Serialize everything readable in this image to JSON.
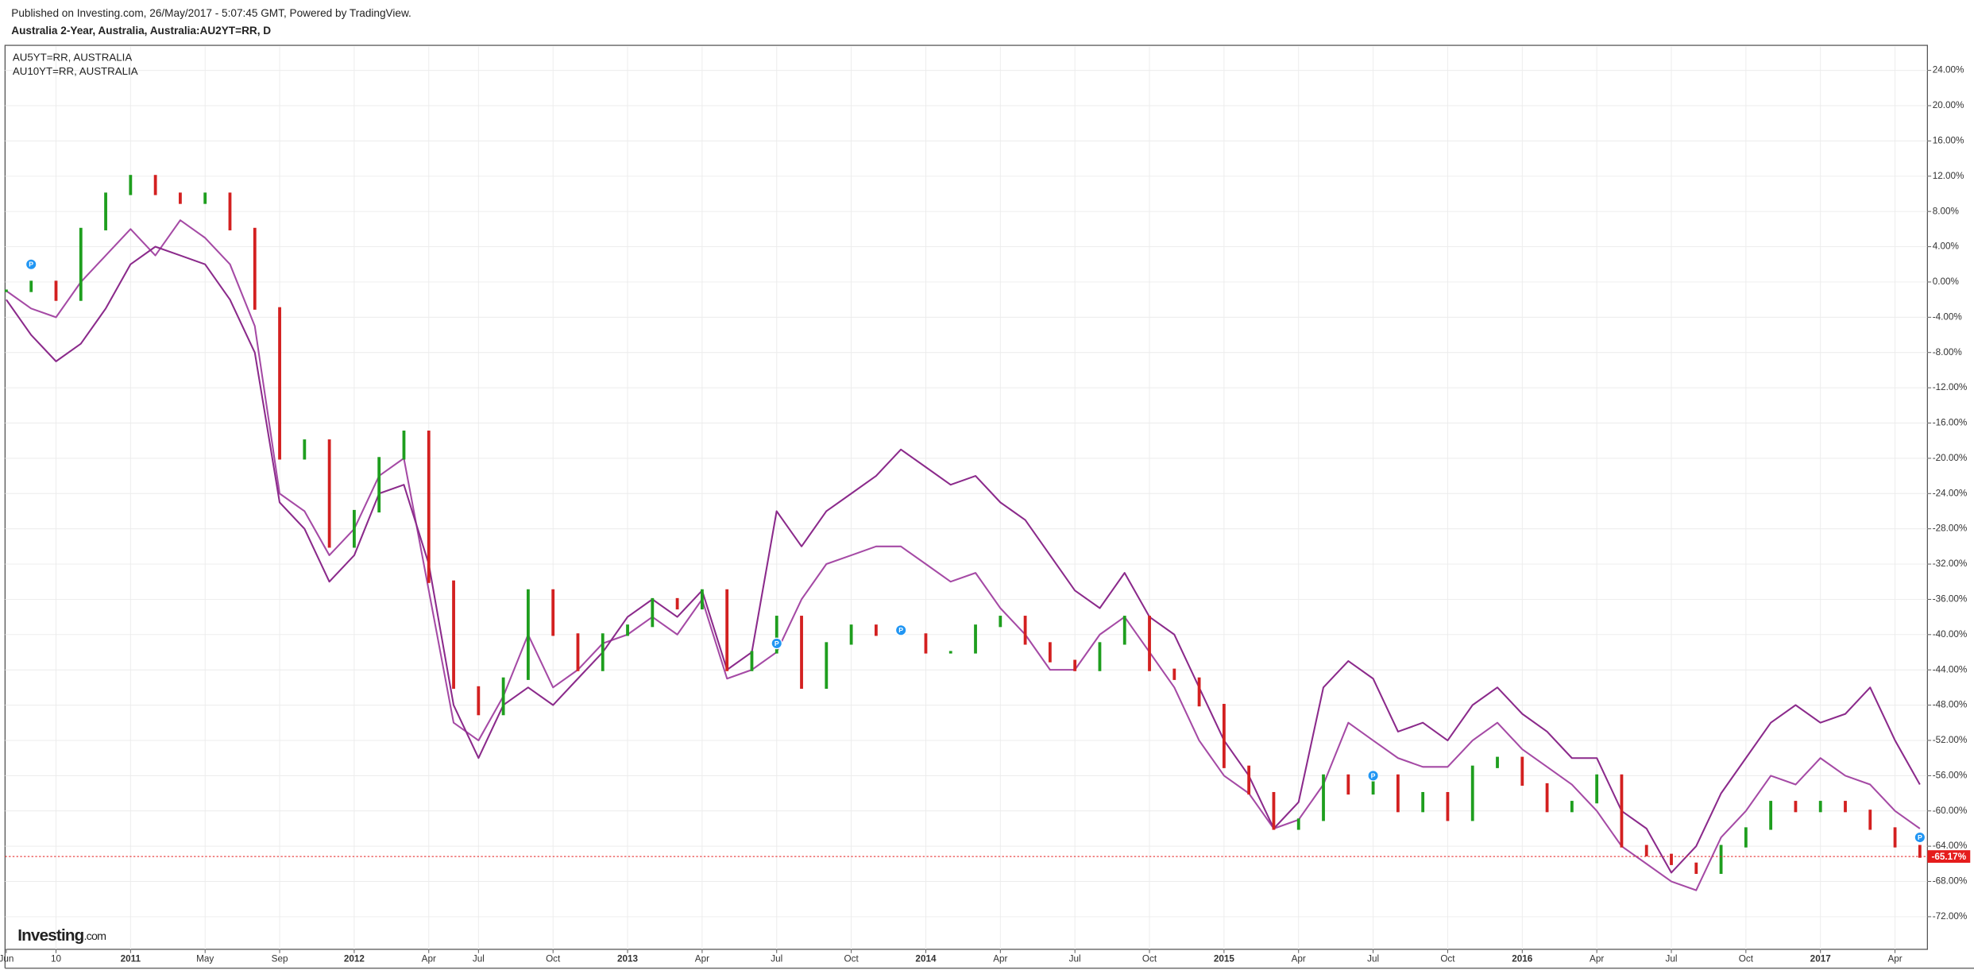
{
  "chart_data": {
    "type": "candle-line",
    "source_note": "Published on Investing.com, 26/May/2017 - 5:07:45 GMT, Powered by TradingView.",
    "title": "Australia 2-Year, Australia, Australia:AU2YT=RR, D",
    "logo": [
      "Investing",
      ".com"
    ],
    "categories": [
      "Jun",
      null,
      "10",
      null,
      null,
      "2011",
      null,
      null,
      "May",
      null,
      null,
      "Sep",
      null,
      null,
      "2012",
      null,
      null,
      "Apr",
      null,
      "Jul",
      null,
      null,
      "Oct",
      null,
      null,
      "2013",
      null,
      null,
      "Apr",
      null,
      null,
      "Jul",
      null,
      null,
      "Oct",
      null,
      null,
      "2014",
      null,
      null,
      "Apr",
      null,
      null,
      "Jul",
      null,
      null,
      "Oct",
      null,
      null,
      "2015",
      null,
      null,
      "Apr",
      null,
      null,
      "Jul",
      null,
      null,
      "Oct",
      null,
      null,
      "2016",
      null,
      null,
      "Apr",
      null,
      null,
      "Jul",
      null,
      null,
      "Oct",
      null,
      null,
      "2017",
      null,
      null,
      "Apr",
      null
    ],
    "series": [
      {
        "style": "candles",
        "color_up": "#1e9e1e",
        "color_down": "#d32020",
        "values": [
          -1,
          0,
          -2,
          6,
          10,
          12,
          10,
          9,
          10,
          6,
          -3,
          -20,
          -18,
          -30,
          -26,
          -20,
          -17,
          -34,
          -46,
          -49,
          -45,
          -35,
          -40,
          -44,
          -40,
          -39,
          -36,
          -37,
          -35,
          -44,
          -42,
          -38,
          -46,
          -41,
          -39,
          -40,
          -40,
          -42,
          -42,
          -39,
          -38,
          -41,
          -43,
          -44,
          -41,
          -38,
          -44,
          -45,
          -48,
          -55,
          -58,
          -62,
          -61,
          -56,
          -58,
          -56,
          -60,
          -58,
          -61,
          -55,
          -54,
          -57,
          -60,
          -59,
          -56,
          -64,
          -65,
          -66,
          -67,
          -64,
          -62,
          -59,
          -60,
          -59,
          -60,
          -62,
          -64,
          -65.17
        ]
      },
      {
        "name": "AU5YT=RR, AUSTRALIA",
        "style": "line",
        "color": "#a54aa5",
        "values": [
          -1,
          -3,
          -4,
          0,
          3,
          6,
          3,
          7,
          5,
          2,
          -5,
          -24,
          -26,
          -31,
          -28,
          -22,
          -20,
          -35,
          -50,
          -52,
          -47,
          -40,
          -46,
          -44,
          -41,
          -40,
          -38,
          -40,
          -36,
          -45,
          -44,
          -42,
          -36,
          -32,
          -31,
          -30,
          -30,
          -32,
          -34,
          -33,
          -37,
          -40,
          -44,
          -44,
          -40,
          -38,
          -42,
          -46,
          -52,
          -56,
          -58,
          -62,
          -61,
          -57,
          -50,
          -52,
          -54,
          -55,
          -55,
          -52,
          -50,
          -53,
          -55,
          -57,
          -60,
          -64,
          -66,
          -68,
          -69,
          -63,
          -60,
          -56,
          -57,
          -54,
          -56,
          -57,
          -60,
          -62
        ]
      },
      {
        "name": "AU10YT=RR, AUSTRALIA",
        "style": "line",
        "color": "#8b2a8b",
        "values": [
          -2,
          -6,
          -9,
          -7,
          -3,
          2,
          4,
          3,
          2,
          -2,
          -8,
          -25,
          -28,
          -34,
          -31,
          -24,
          -23,
          -32,
          -48,
          -54,
          -48,
          -46,
          -48,
          -45,
          -42,
          -38,
          -36,
          -38,
          -35,
          -44,
          -42,
          -26,
          -30,
          -26,
          -24,
          -22,
          -19,
          -21,
          -23,
          -22,
          -25,
          -27,
          -31,
          -35,
          -37,
          -33,
          -38,
          -40,
          -46,
          -52,
          -56,
          -62,
          -59,
          -46,
          -43,
          -45,
          -51,
          -50,
          -52,
          -48,
          -46,
          -49,
          -51,
          -54,
          -54,
          -60,
          -62,
          -67,
          -64,
          -58,
          -54,
          -50,
          -48,
          -50,
          -49,
          -46,
          -52,
          -57
        ]
      }
    ],
    "last_value": {
      "value": -65.17,
      "label": "-65.17%",
      "color": "#e51c1c"
    },
    "event_markers": [
      {
        "at": 1,
        "value": 2,
        "label": "P"
      },
      {
        "at": 31,
        "value": -41,
        "label": "P"
      },
      {
        "at": 36,
        "value": -39.5,
        "label": "P"
      },
      {
        "at": 55,
        "value": -56,
        "label": "P"
      },
      {
        "at": 77,
        "value": -63,
        "label": "P"
      }
    ],
    "marker_color": "#2196f3",
    "ylim": [
      -75.7,
      26.7
    ],
    "yticks": [
      {
        "value": 24,
        "label": "24.00%"
      },
      {
        "value": 20,
        "label": "20.00%"
      },
      {
        "value": 16,
        "label": "16.00%"
      },
      {
        "value": 12,
        "label": "12.00%"
      },
      {
        "value": 8,
        "label": "8.00%"
      },
      {
        "value": 4,
        "label": "4.00%"
      },
      {
        "value": 0,
        "label": "0.00%"
      },
      {
        "value": -4,
        "label": "-4.00%"
      },
      {
        "value": -8,
        "label": "-8.00%"
      },
      {
        "value": -12,
        "label": "-12.00%"
      },
      {
        "value": -16,
        "label": "-16.00%"
      },
      {
        "value": -20,
        "label": "-20.00%"
      },
      {
        "value": -24,
        "label": "-24.00%"
      },
      {
        "value": -28,
        "label": "-28.00%"
      },
      {
        "value": -32,
        "label": "-32.00%"
      },
      {
        "value": -36,
        "label": "-36.00%"
      },
      {
        "value": -40,
        "label": "-40.00%"
      },
      {
        "value": -44,
        "label": "-44.00%"
      },
      {
        "value": -48,
        "label": "-48.00%"
      },
      {
        "value": -52,
        "label": "-52.00%"
      },
      {
        "value": -56,
        "label": "-56.00%"
      },
      {
        "value": -60,
        "label": "-60.00%"
      },
      {
        "value": -64,
        "label": "-64.00%"
      },
      {
        "value": -68,
        "label": "-68.00%"
      },
      {
        "value": -72,
        "label": "-72.00%"
      }
    ],
    "grid": true
  }
}
